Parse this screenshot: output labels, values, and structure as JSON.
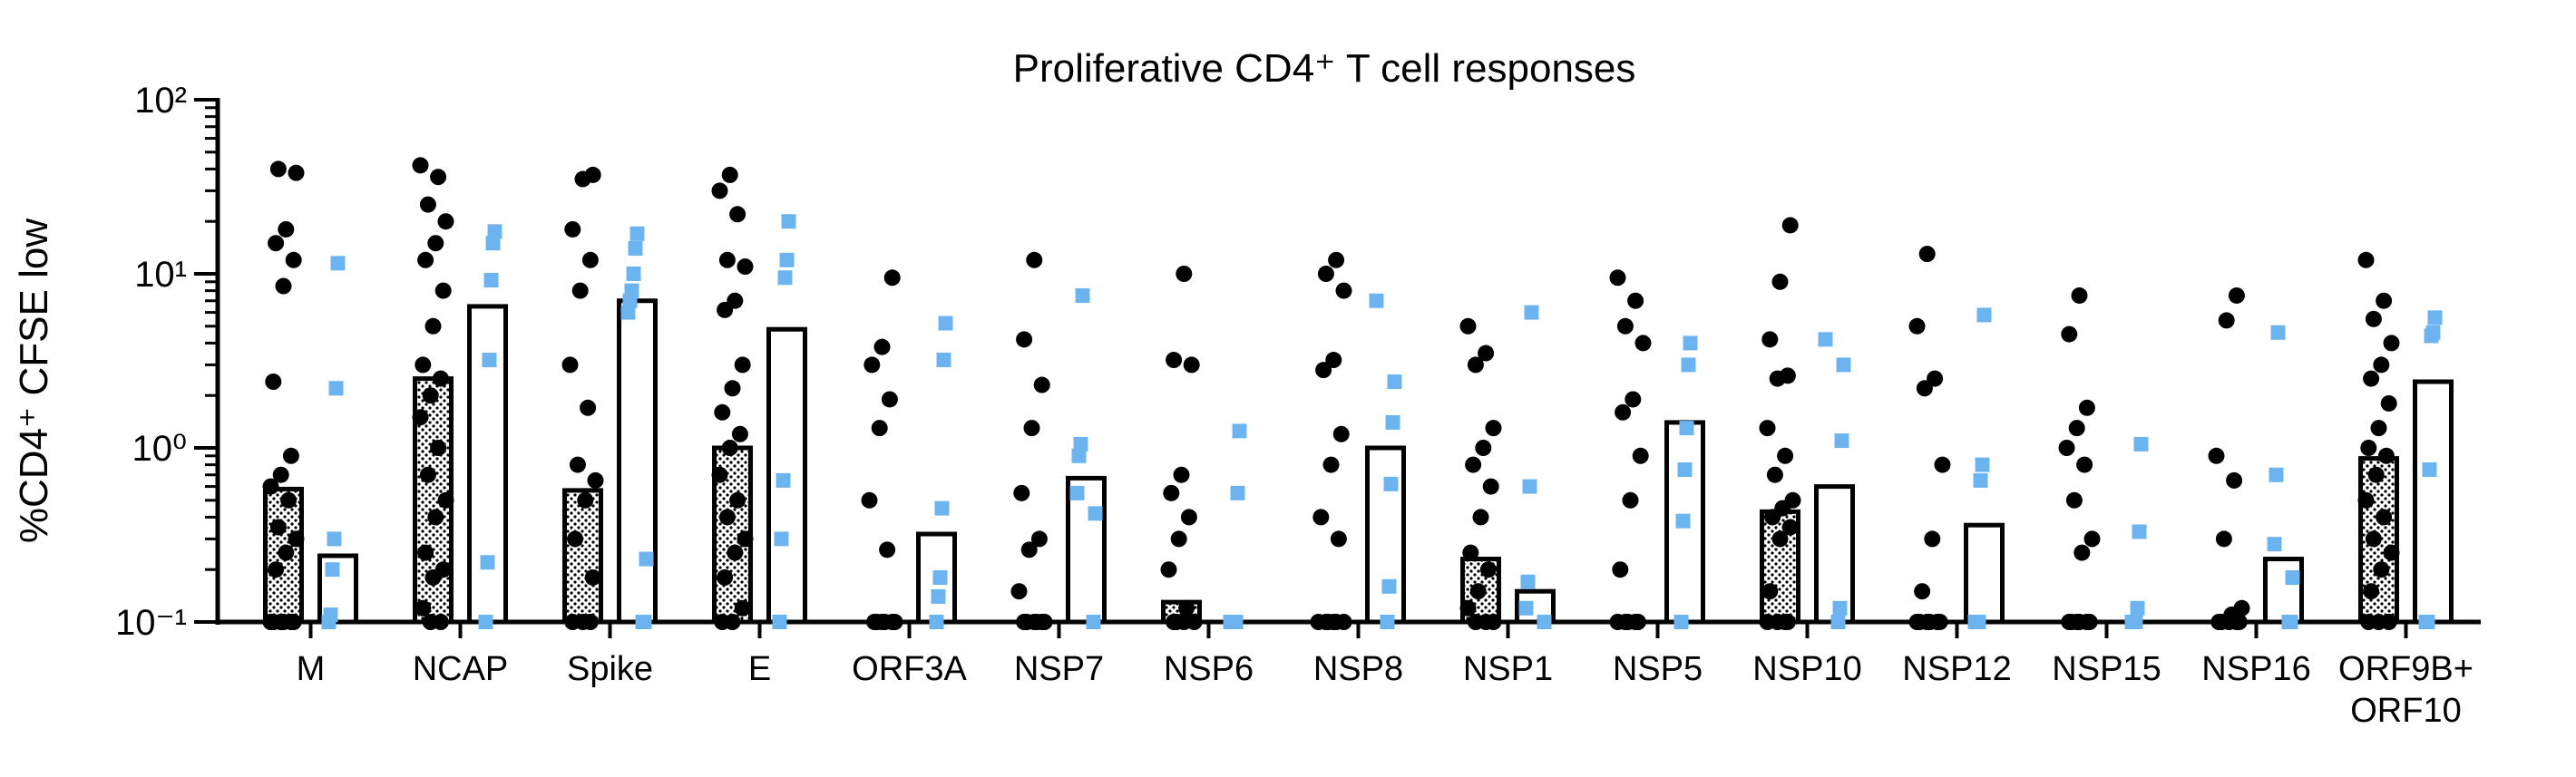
{
  "chart_data": {
    "type": "bar",
    "title": "Proliferative CD4⁺ T cell responses",
    "ylabel": "%CD4⁺ CFSE low",
    "y_scale": "log",
    "ylim": [
      0.1,
      100
    ],
    "y_ticks": [
      {
        "value": 0.1,
        "label": "10⁻¹"
      },
      {
        "value": 1,
        "label": "10⁰"
      },
      {
        "value": 10,
        "label": "10¹"
      },
      {
        "value": 100,
        "label": "10²"
      }
    ],
    "legend": "none",
    "colors": {
      "group1_points": "#000000",
      "group2_points": "#6cb4ef",
      "bar_outline": "#000000",
      "bar1_fill": "#ffffff",
      "bar1_dots": "#000000"
    },
    "categories": [
      {
        "label": "M",
        "group1": {
          "bar": 0.58,
          "points": [
            0.1,
            0.1,
            0.1,
            0.1,
            0.1,
            0.1,
            0.2,
            0.25,
            0.3,
            0.35,
            0.5,
            0.6,
            0.7,
            0.9,
            2.4,
            8.5,
            12,
            15,
            18,
            38,
            40
          ]
        },
        "group2": {
          "bar": 0.24,
          "points": [
            0.1,
            0.11,
            0.2,
            0.3,
            2.2,
            11.5
          ]
        }
      },
      {
        "label": "NCAP",
        "group1": {
          "bar": 2.5,
          "points": [
            0.1,
            0.1,
            0.12,
            0.18,
            0.2,
            0.25,
            0.4,
            0.5,
            0.7,
            1,
            1.5,
            2,
            2.5,
            3,
            5,
            8,
            12,
            15,
            20,
            25,
            36,
            42
          ]
        },
        "group2": {
          "bar": 6.5,
          "points": [
            0.1,
            0.22,
            3.2,
            9.2,
            15,
            17.5
          ]
        }
      },
      {
        "label": "Spike",
        "group1": {
          "bar": 0.57,
          "points": [
            0.1,
            0.1,
            0.1,
            0.18,
            0.3,
            0.5,
            0.65,
            0.8,
            1.7,
            3,
            8,
            12,
            18,
            35,
            37
          ]
        },
        "group2": {
          "bar": 7.0,
          "points": [
            0.1,
            0.1,
            0.23,
            6,
            7,
            8,
            10,
            14,
            17
          ]
        }
      },
      {
        "label": "E",
        "group1": {
          "bar": 1.0,
          "points": [
            0.1,
            0.1,
            0.12,
            0.18,
            0.25,
            0.3,
            0.4,
            0.5,
            0.7,
            1,
            1.2,
            1.6,
            2.2,
            3,
            6.2,
            7,
            11,
            12,
            22,
            30,
            37
          ]
        },
        "group2": {
          "bar": 4.8,
          "points": [
            0.1,
            0.3,
            0.65,
            9.5,
            12,
            20
          ]
        }
      },
      {
        "label": "ORF3A",
        "group1": {
          "bar": 0.1,
          "points": [
            0.1,
            0.1,
            0.1,
            0.1,
            0.1,
            0.1,
            0.26,
            0.5,
            1.3,
            1.9,
            3,
            3.8,
            9.5
          ]
        },
        "group2": {
          "bar": 0.32,
          "points": [
            0.1,
            0.14,
            0.18,
            0.45,
            3.2,
            5.2
          ]
        }
      },
      {
        "label": "NSP7",
        "group1": {
          "bar": 0.1,
          "points": [
            0.1,
            0.1,
            0.1,
            0.1,
            0.1,
            0.1,
            0.15,
            0.26,
            0.3,
            0.55,
            1.3,
            2.3,
            4.2,
            12
          ]
        },
        "group2": {
          "bar": 0.67,
          "points": [
            0.1,
            0.42,
            0.55,
            0.9,
            1.05,
            7.5
          ]
        }
      },
      {
        "label": "NSP6",
        "group1": {
          "bar": 0.13,
          "points": [
            0.1,
            0.1,
            0.1,
            0.1,
            0.12,
            0.2,
            0.3,
            0.4,
            0.55,
            0.7,
            3,
            3.2,
            10
          ]
        },
        "group2": {
          "bar": 0.1,
          "points": [
            0.1,
            0.1,
            0.1,
            0.1,
            0.55,
            1.25
          ]
        }
      },
      {
        "label": "NSP8",
        "group1": {
          "bar": 0.1,
          "points": [
            0.1,
            0.1,
            0.1,
            0.1,
            0.1,
            0.1,
            0.3,
            0.4,
            0.8,
            1.2,
            2.8,
            3.2,
            8,
            10,
            12
          ]
        },
        "group2": {
          "bar": 1.0,
          "points": [
            0.1,
            0.16,
            0.62,
            1.4,
            2.4,
            7
          ]
        }
      },
      {
        "label": "NSP1",
        "group1": {
          "bar": 0.23,
          "points": [
            0.1,
            0.1,
            0.1,
            0.12,
            0.15,
            0.2,
            0.25,
            0.4,
            0.6,
            0.8,
            1,
            1.3,
            3,
            3.5,
            5
          ]
        },
        "group2": {
          "bar": 0.15,
          "points": [
            0.1,
            0.12,
            0.17,
            0.6,
            6
          ]
        }
      },
      {
        "label": "NSP5",
        "group1": {
          "bar": 0.1,
          "points": [
            0.1,
            0.1,
            0.1,
            0.1,
            0.1,
            0.2,
            0.5,
            0.9,
            1.6,
            1.9,
            4,
            5,
            7,
            9.5
          ]
        },
        "group2": {
          "bar": 1.4,
          "points": [
            0.1,
            0.38,
            0.75,
            1.3,
            3,
            4
          ]
        }
      },
      {
        "label": "NSP10",
        "group1": {
          "bar": 0.43,
          "points": [
            0.1,
            0.1,
            0.1,
            0.1,
            0.15,
            0.3,
            0.35,
            0.4,
            0.45,
            0.5,
            0.7,
            0.9,
            1.3,
            2.5,
            2.6,
            4.2,
            9,
            19
          ]
        },
        "group2": {
          "bar": 0.6,
          "points": [
            0.1,
            0.12,
            1.1,
            3,
            4.2
          ]
        }
      },
      {
        "label": "NSP12",
        "group1": {
          "bar": 0.1,
          "points": [
            0.1,
            0.1,
            0.1,
            0.1,
            0.1,
            0.1,
            0.15,
            0.3,
            0.8,
            2.2,
            2.5,
            5,
            13
          ]
        },
        "group2": {
          "bar": 0.36,
          "points": [
            0.1,
            0.1,
            0.1,
            0.65,
            0.8,
            5.8
          ]
        }
      },
      {
        "label": "NSP15",
        "group1": {
          "bar": 0.1,
          "points": [
            0.1,
            0.1,
            0.1,
            0.1,
            0.1,
            0.1,
            0.25,
            0.3,
            0.5,
            0.8,
            1,
            1.3,
            1.7,
            4.5,
            7.5
          ]
        },
        "group2": {
          "bar": 0.1,
          "points": [
            0.1,
            0.1,
            0.1,
            0.12,
            0.33,
            1.05
          ]
        }
      },
      {
        "label": "NSP16",
        "group1": {
          "bar": 0.1,
          "points": [
            0.1,
            0.1,
            0.1,
            0.1,
            0.1,
            0.11,
            0.12,
            0.3,
            0.65,
            0.9,
            5.4,
            7.5
          ]
        },
        "group2": {
          "bar": 0.23,
          "points": [
            0.1,
            0.1,
            0.18,
            0.28,
            0.7,
            4.6
          ]
        }
      },
      {
        "label": "ORF9B+\nORF10",
        "group1": {
          "bar": 0.87,
          "points": [
            0.1,
            0.1,
            0.1,
            0.15,
            0.2,
            0.25,
            0.3,
            0.4,
            0.5,
            0.7,
            0.9,
            1,
            1.3,
            1.8,
            2.5,
            3,
            4,
            5.5,
            7,
            12
          ]
        },
        "group2": {
          "bar": 2.4,
          "points": [
            0.1,
            0.1,
            0.75,
            4.4,
            4.6,
            5.6
          ]
        }
      }
    ]
  }
}
